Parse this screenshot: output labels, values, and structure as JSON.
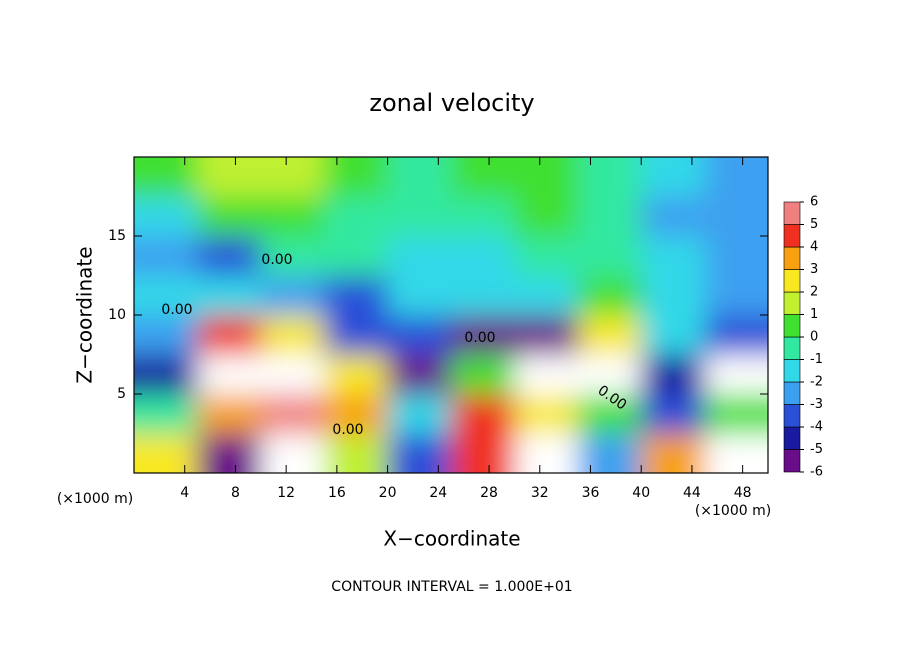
{
  "chart_data": {
    "type": "heatmap",
    "title": "zonal velocity",
    "xlabel": "X−coordinate",
    "ylabel": "Z−coordinate",
    "x_unit_labels": [
      "(×1000 m)",
      "(×1000 m)"
    ],
    "footer": "CONTOUR INTERVAL = 1.000E+01",
    "contour_labels": [
      "0.00",
      "0.00",
      "0.00",
      "0.00",
      "0.00"
    ],
    "xlim": [
      0,
      50
    ],
    "ylim": [
      0,
      20
    ],
    "xticks": [
      4,
      8,
      12,
      16,
      20,
      24,
      28,
      32,
      36,
      40,
      44,
      48
    ],
    "yticks": [
      5,
      10,
      15
    ],
    "values": [
      [
        3,
        -5,
        8,
        2,
        -3,
        5,
        8,
        -2,
        4,
        7
      ],
      [
        0,
        4,
        6,
        4,
        -1,
        5,
        3,
        1,
        -3,
        1
      ],
      [
        -4,
        8,
        8,
        3,
        -5,
        1,
        8,
        7,
        -4,
        7
      ],
      [
        -2,
        5,
        3,
        -3,
        -3,
        -5,
        -5,
        3,
        -1,
        -3
      ],
      [
        -1,
        -1,
        -2,
        -3,
        -1.5,
        -1,
        -1,
        0.5,
        -1,
        -2
      ],
      [
        -2,
        -3,
        0,
        -0.5,
        -1.5,
        -1,
        0,
        0,
        -1.5,
        -2.5
      ],
      [
        -1.5,
        1,
        1,
        0,
        -0.5,
        0,
        0.5,
        0,
        -2,
        -2.5
      ],
      [
        1,
        2,
        2,
        0.5,
        0,
        0.5,
        0.5,
        0,
        -1.5,
        -2
      ]
    ],
    "colorbar": {
      "ticks": [
        -6,
        -5,
        -4,
        -3,
        -2,
        -1,
        0,
        1,
        2,
        3,
        4,
        5,
        6
      ],
      "colors": [
        "#6a0d8a",
        "#1a1aa0",
        "#2a50d8",
        "#3ca0f0",
        "#30d8e8",
        "#30e8a0",
        "#40e030",
        "#c0f030",
        "#f8e820",
        "#f8a010",
        "#f03020",
        "#f08080"
      ],
      "over_color": "#ffffff"
    }
  }
}
